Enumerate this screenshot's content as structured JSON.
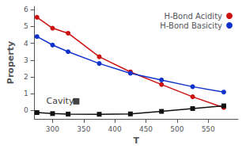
{
  "chart_data": {
    "type": "line",
    "title": "",
    "xlabel": "T",
    "ylabel": "Property",
    "x": [
      275,
      300,
      325,
      375,
      425,
      475,
      525,
      575
    ],
    "series": [
      {
        "name": "H-Bond Acidity",
        "color": "#cc1111",
        "marker": "circle",
        "values": [
          5.55,
          4.9,
          4.6,
          3.2,
          2.3,
          1.55,
          0.82,
          0.18
        ]
      },
      {
        "name": "H-Bond Basicity",
        "color": "#1133cc",
        "marker": "circle",
        "values": [
          4.4,
          3.9,
          3.5,
          2.8,
          2.22,
          1.82,
          1.42,
          1.1
        ]
      },
      {
        "color": "#111111",
        "marker": "square",
        "values": [
          -0.12,
          -0.18,
          -0.21,
          -0.22,
          -0.2,
          -0.05,
          0.12,
          0.28
        ]
      }
    ],
    "annotations": [
      {
        "text": "Cavity",
        "x": 290,
        "y": 0.55,
        "marker": "square",
        "marker_x": 338,
        "marker_y": 0.55,
        "color": "#111111"
      }
    ],
    "xlim": [
      271,
      598
    ],
    "xticks": [
      300,
      350,
      400,
      450,
      500,
      550
    ],
    "ylim": [
      -0.5,
      6.2
    ],
    "yticks": [
      0,
      1,
      2,
      3,
      4,
      5,
      6
    ],
    "grid": false,
    "legend": "upper right"
  }
}
